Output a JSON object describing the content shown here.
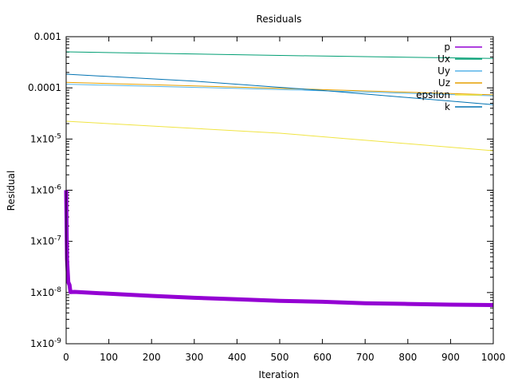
{
  "chart_data": {
    "type": "line",
    "title": "Residuals",
    "xlabel": "Iteration",
    "ylabel": "Residual",
    "xlim": [
      0,
      1000
    ],
    "ylim": [
      1e-09,
      0.001
    ],
    "yscale": "log",
    "grid": false,
    "legend_placement": "top-right",
    "xticks": [
      "0",
      "100",
      "200",
      "300",
      "400",
      "500",
      "600",
      "700",
      "800",
      "900",
      "1000"
    ],
    "xtick_values": [
      0,
      100,
      200,
      300,
      400,
      500,
      600,
      700,
      800,
      900,
      1000
    ],
    "yticks": [
      "1x10-9",
      "1x10-8",
      "1x10-7",
      "1x10-6",
      "1x10-5",
      "0.0001",
      "0.001"
    ],
    "ytick_values": [
      1e-09,
      1e-08,
      1e-07,
      1e-06,
      1e-05,
      0.0001,
      0.001
    ],
    "series": [
      {
        "name": "p",
        "color": "#9400d3",
        "x": [
          0,
          2,
          5,
          8,
          10,
          20,
          100,
          200,
          300,
          400,
          500,
          600,
          700,
          800,
          900,
          1000
        ],
        "y": [
          1e-06,
          4.5e-08,
          1.6e-08,
          1.4e-08,
          1.02e-08,
          1.03e-08,
          9.5e-09,
          8.6e-09,
          7.9e-09,
          7.4e-09,
          6.9e-09,
          6.6e-09,
          6.2e-09,
          6e-09,
          5.8e-09,
          5.7e-09
        ]
      },
      {
        "name": "Ux",
        "color": "#009e73",
        "x": [
          0,
          500,
          1000
        ],
        "y": [
          0.000505,
          0.00043,
          0.000375
        ]
      },
      {
        "name": "Uy",
        "color": "#56b4e9",
        "x": [
          0,
          500,
          1000
        ],
        "y": [
          0.000118,
          9.3e-05,
          7e-05
        ]
      },
      {
        "name": "Uz",
        "color": "#e69f00",
        "x": [
          0,
          500,
          1000
        ],
        "y": [
          0.000128,
          9.8e-05,
          7.3e-05
        ]
      },
      {
        "name": "epsilon",
        "color": "#f0e442",
        "x": [
          0,
          500,
          1000
        ],
        "y": [
          2.23e-05,
          1.3e-05,
          5.9e-06
        ]
      },
      {
        "name": "k",
        "color": "#0072b2",
        "x": [
          0,
          300,
          600,
          1000
        ],
        "y": [
          0.000185,
          0.000135,
          8.9e-05,
          4.7e-05
        ]
      }
    ]
  }
}
